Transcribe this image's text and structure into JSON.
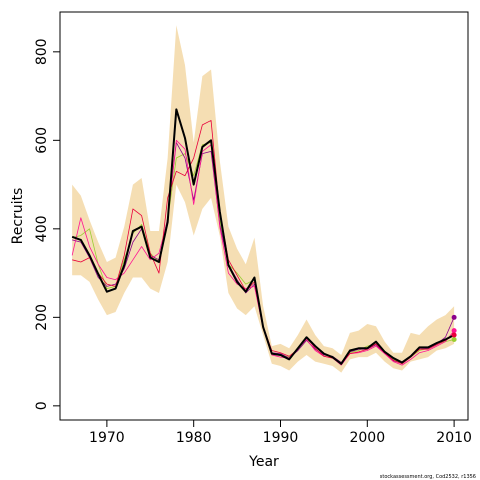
{
  "chart_data": {
    "type": "line",
    "title": "",
    "xlabel": "Year",
    "ylabel": "Recruits",
    "xlim": [
      1964.6,
      2011.6
    ],
    "ylim": [
      -32,
      890
    ],
    "x_ticks": [
      1970,
      1980,
      1990,
      2000,
      2010
    ],
    "y_ticks": [
      0,
      200,
      400,
      600,
      800
    ],
    "grid": false,
    "legend": "none",
    "credit": "stockassessment.org, Cod2532, r1356",
    "x": [
      1966,
      1967,
      1968,
      1969,
      1970,
      1971,
      1972,
      1973,
      1974,
      1975,
      1976,
      1977,
      1978,
      1979,
      1980,
      1981,
      1982,
      1983,
      1984,
      1985,
      1986,
      1987,
      1988,
      1989,
      1990,
      1991,
      1992,
      1993,
      1994,
      1995,
      1996,
      1997,
      1998,
      1999,
      2000,
      2001,
      2002,
      2003,
      2004,
      2005,
      2006,
      2007,
      2008,
      2009,
      2010
    ],
    "band": {
      "color": "#f5deb3",
      "lower": [
        295,
        295,
        280,
        240,
        205,
        212,
        255,
        290,
        290,
        265,
        255,
        325,
        500,
        460,
        385,
        445,
        470,
        385,
        255,
        220,
        205,
        225,
        160,
        95,
        90,
        80,
        100,
        115,
        100,
        95,
        90,
        75,
        105,
        110,
        110,
        120,
        100,
        85,
        80,
        100,
        105,
        110,
        125,
        130,
        140
      ],
      "upper": [
        500,
        475,
        420,
        370,
        325,
        335,
        405,
        500,
        515,
        395,
        395,
        560,
        860,
        770,
        595,
        745,
        760,
        555,
        405,
        355,
        320,
        380,
        225,
        135,
        140,
        130,
        160,
        195,
        160,
        135,
        130,
        115,
        165,
        170,
        185,
        180,
        145,
        120,
        120,
        165,
        160,
        180,
        195,
        205,
        225
      ]
    },
    "series": [
      {
        "color": "#000000",
        "width": 2,
        "values": [
          382,
          375,
          340,
          298,
          258,
          265,
          318,
          395,
          405,
          335,
          325,
          415,
          670,
          605,
          500,
          585,
          600,
          440,
          318,
          280,
          258,
          290,
          178,
          118,
          115,
          105,
          130,
          155,
          135,
          118,
          110,
          95,
          125,
          130,
          130,
          145,
          122,
          108,
          98,
          112,
          132,
          132,
          142,
          150,
          160
        ]
      },
      {
        "color": "#9acd32",
        "width": 0.8,
        "values": [
          380,
          385,
          400,
          320,
          265,
          270,
          330,
          390,
          410,
          345,
          325,
          420,
          560,
          570,
          520,
          590,
          595,
          420,
          320,
          300,
          275,
          285,
          180,
          120,
          115,
          110,
          125,
          150,
          135,
          115,
          110,
          95,
          120,
          125,
          135,
          140,
          120,
          105,
          95,
          110,
          125,
          130,
          140,
          145,
          150
        ]
      },
      {
        "color": "#8b008b",
        "width": 0.8,
        "values": [
          375,
          370,
          335,
          290,
          270,
          275,
          310,
          370,
          400,
          340,
          330,
          425,
          595,
          560,
          465,
          570,
          575,
          410,
          320,
          285,
          255,
          275,
          175,
          120,
          118,
          108,
          125,
          148,
          128,
          115,
          112,
          98,
          122,
          128,
          128,
          138,
          118,
          102,
          96,
          112,
          128,
          130,
          140,
          155,
          200
        ]
      },
      {
        "color": "#ff1493",
        "width": 0.8,
        "values": [
          340,
          425,
          360,
          320,
          290,
          285,
          300,
          330,
          360,
          330,
          345,
          420,
          600,
          580,
          455,
          575,
          590,
          405,
          300,
          275,
          265,
          270,
          175,
          115,
          110,
          108,
          130,
          150,
          125,
          112,
          108,
          92,
          118,
          120,
          125,
          135,
          118,
          100,
          92,
          105,
          120,
          125,
          135,
          145,
          170
        ]
      },
      {
        "color": "#e8003c",
        "width": 0.8,
        "values": [
          330,
          325,
          335,
          300,
          275,
          270,
          340,
          445,
          430,
          345,
          300,
          470,
          530,
          520,
          560,
          635,
          645,
          440,
          330,
          295,
          260,
          280,
          180,
          125,
          120,
          112,
          128,
          155,
          130,
          112,
          108,
          96,
          118,
          122,
          128,
          140,
          120,
          103,
          95,
          110,
          128,
          128,
          138,
          148,
          160
        ]
      }
    ],
    "endpoints": [
      {
        "color": "#9acd32",
        "value": 150
      },
      {
        "color": "#ff1493",
        "value": 170
      },
      {
        "color": "#e8003c",
        "value": 160
      },
      {
        "color": "#8b008b",
        "value": 200
      }
    ]
  }
}
